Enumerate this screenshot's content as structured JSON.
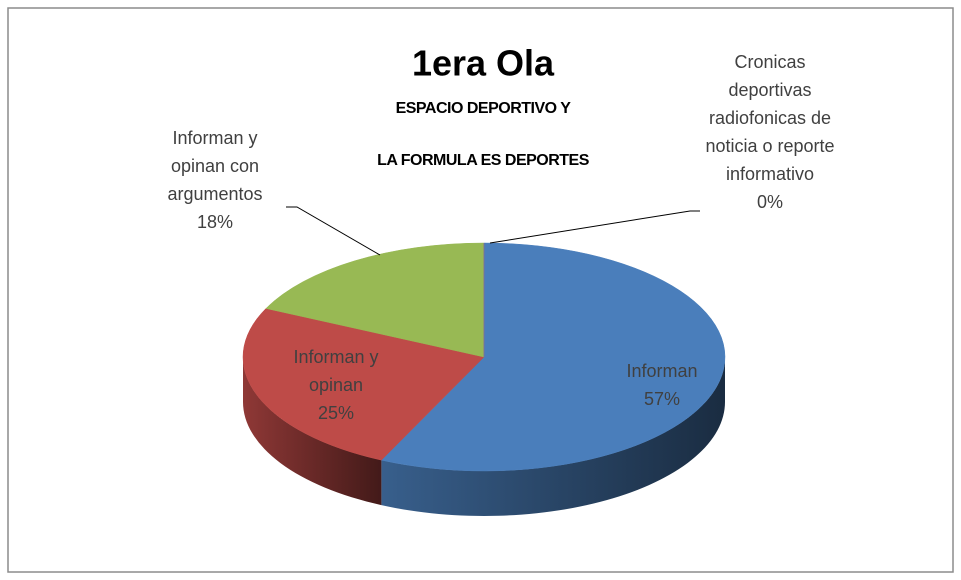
{
  "chart_data": {
    "type": "pie",
    "title": "1era Ola",
    "subtitle": [
      "ESPACIO DEPORTIVO Y",
      "LA FORMULA ES DEPORTES"
    ],
    "categories": [
      "Informan",
      "Informan y opinan",
      "Informan y opinan con argumentos",
      "Cronicas deportivas radiofonicas de noticia o reporte informativo"
    ],
    "values": [
      57,
      25,
      18,
      0
    ],
    "value_labels": [
      "57%",
      "25%",
      "18%",
      "0%"
    ],
    "colors": [
      "#4a7ebb",
      "#be4b48",
      "#98b954",
      "#7d60a0"
    ]
  }
}
